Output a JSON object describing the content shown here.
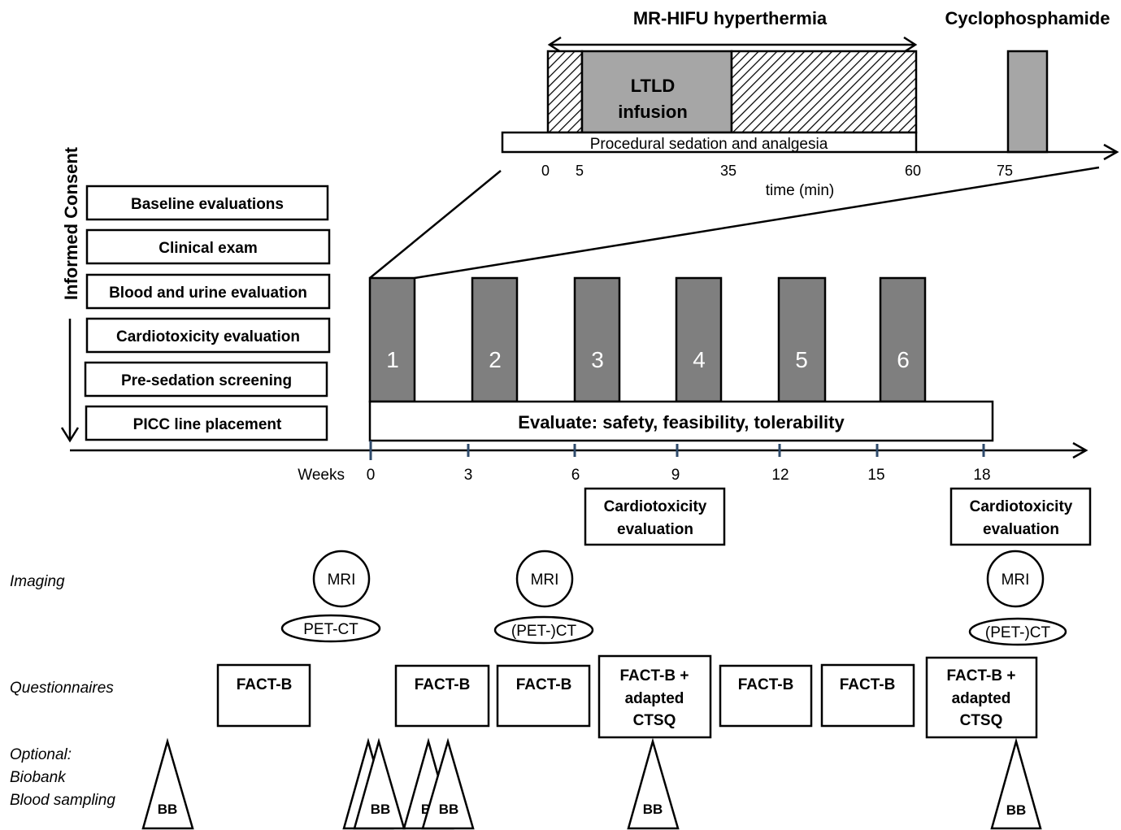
{
  "top": {
    "hyperthermia_label": "MR-HIFU hyperthermia",
    "cyclophosphamide_label": "Cyclophosphamide",
    "ltld_line1": "LTLD",
    "ltld_line2": "infusion",
    "sedation_label": "Procedural sedation and analgesia",
    "time_ticks": [
      "0",
      "5",
      "35",
      "60",
      "75"
    ],
    "time_axis_label": "time (min)"
  },
  "side": {
    "informed_consent": "Informed Consent",
    "steps": [
      "Baseline evaluations",
      "Clinical exam",
      "Blood and urine evaluation",
      "Cardiotoxicity evaluation",
      "Pre-sedation screening",
      "PICC line placement"
    ]
  },
  "timeline": {
    "cycles": [
      "1",
      "2",
      "3",
      "4",
      "5",
      "6"
    ],
    "evaluate_label": "Evaluate: safety, feasibility, tolerability",
    "weeks_label": "Weeks",
    "week_ticks": [
      "0",
      "3",
      "6",
      "9",
      "12",
      "15",
      "18"
    ],
    "cardio_line1": "Cardiotoxicity",
    "cardio_line2": "evaluation"
  },
  "rows": {
    "imaging_label": "Imaging",
    "questionnaires_label": "Questionnaires",
    "optional_line1": "Optional:",
    "optional_line2": "Biobank",
    "optional_line3": "Blood sampling"
  },
  "imaging": {
    "mri": "MRI",
    "petct_baseline": "PET-CT",
    "petct_followup": "(PET-)CT"
  },
  "questionnaires": {
    "factb": "FACT-B",
    "combo_line1": "FACT-B +",
    "combo_line2": "adapted",
    "combo_line3": "CTSQ"
  },
  "biobank": {
    "bb": "BB",
    "bb_partial": "B"
  },
  "colors": {
    "cycle_fill": "#7f7f7f",
    "ltld_fill": "#a6a6a6",
    "cyclophosphamide_fill": "#a6a6a6"
  }
}
